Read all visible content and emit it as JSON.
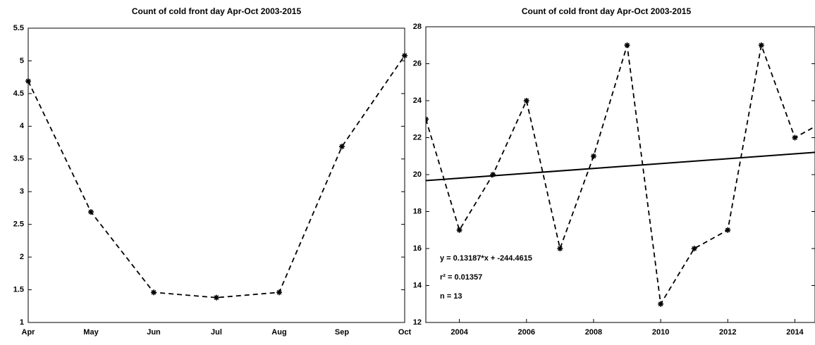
{
  "chart_data": [
    {
      "type": "line",
      "title": "Count of cold front day Apr-Oct 2003-2015",
      "categories": [
        "Apr",
        "May",
        "Jun",
        "Jul",
        "Aug",
        "Sep",
        "Oct"
      ],
      "series": [
        {
          "color": "#000000",
          "values": [
            4.69,
            2.69,
            1.46,
            1.38,
            1.46,
            3.69,
            5.08
          ]
        }
      ],
      "ylim": [
        1,
        5.5
      ],
      "yticks": [
        1,
        1.5,
        2,
        2.5,
        3,
        3.5,
        4,
        4.5,
        5,
        5.5
      ],
      "grid": false
    },
    {
      "type": "line",
      "title": "Count of cold front day Apr-Oct 2003-2015",
      "x": [
        2003,
        2004,
        2005,
        2006,
        2007,
        2008,
        2009,
        2010,
        2011,
        2012,
        2013,
        2014,
        2015
      ],
      "series": [
        {
          "color": "#000000",
          "values": [
            23,
            17,
            20,
            24,
            16,
            21,
            27,
            13,
            16,
            17,
            27,
            22,
            23
          ]
        }
      ],
      "trend_line": {
        "slope": 0.13187,
        "intercept": -244.4615
      },
      "annotations": [
        "y = 0.13187*x + -244.4615",
        "r² = 0.01357",
        "n = 13"
      ],
      "xlim": [
        2003,
        2014.6
      ],
      "xticks": [
        2004,
        2006,
        2008,
        2010,
        2012,
        2014
      ],
      "ylim": [
        12,
        28
      ],
      "yticks": [
        12,
        14,
        16,
        18,
        20,
        22,
        24,
        26,
        28
      ],
      "grid": false
    }
  ]
}
